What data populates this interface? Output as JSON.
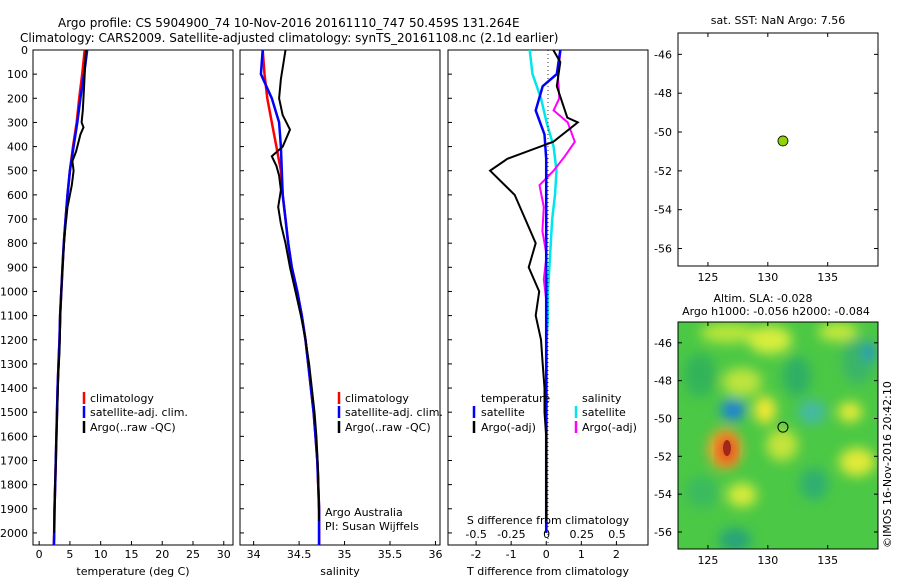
{
  "title": {
    "line1": "Argo profile: CS 5904900_74 10-Nov-2016 20161110_747 50.459S 131.264E",
    "line2": "Climatology: CARS2009. Satellite-adjusted climatology: synTS_20161108.nc (2.1d earlier)"
  },
  "depth_ticks": [
    "0",
    "100",
    "200",
    "300",
    "400",
    "500",
    "600",
    "700",
    "800",
    "900",
    "1000",
    "1100",
    "1200",
    "1300",
    "1400",
    "1500",
    "1600",
    "1700",
    "1800",
    "1900",
    "2000"
  ],
  "panel_temperature": {
    "xlabel": "temperature (deg C)",
    "xticks": [
      "0",
      "5",
      "10",
      "15",
      "20",
      "25",
      "30"
    ],
    "legend": [
      "climatology",
      "satellite-adj. clim.",
      "Argo(..raw -QC)"
    ]
  },
  "panel_salinity": {
    "xlabel": "salinity",
    "xticks": [
      "34",
      "34.5",
      "35",
      "35.5",
      "36"
    ],
    "legend": [
      "climatology",
      "satellite-adj. clim.",
      "Argo(..raw -QC)"
    ],
    "note1": "Argo Australia",
    "note2": "PI: Susan Wijffels"
  },
  "panel_diff": {
    "xlabel": "T difference from climatology",
    "top_label": "S difference from climatology",
    "xticks_t": [
      "-2",
      "-1",
      "0",
      "1",
      "2"
    ],
    "xticks_s": [
      "-0.5",
      "-0.25",
      "0",
      "0.25",
      "0.5"
    ],
    "legend_t_title": "temperature",
    "legend_s_title": "salinity",
    "legend_t": [
      "satellite",
      "Argo(-adj)"
    ],
    "legend_s": [
      "satellite",
      "Argo(-adj)"
    ]
  },
  "map_sst": {
    "title": "sat. SST: NaN Argo: 7.56",
    "yticks": [
      "-46",
      "-48",
      "-50",
      "-52",
      "-54",
      "-56"
    ],
    "xticks": [
      "125",
      "130",
      "135"
    ]
  },
  "map_sla": {
    "title1": "Altim. SLA: -0.028",
    "title2": "Argo h1000: -0.056 h2000: -0.084",
    "yticks": [
      "-46",
      "-48",
      "-50",
      "-52",
      "-54",
      "-56"
    ],
    "xticks": [
      "125",
      "130",
      "135"
    ]
  },
  "watermark": "©IMOS 16-Nov-2016 20:42:10",
  "colors": {
    "climatology": "#ff0000",
    "satellite": "#0000ff",
    "argo": "#000000",
    "sat_s": "#00e5ee",
    "argo_s": "#ff00ff",
    "float_marker": "#8fd400"
  },
  "chart_data": [
    {
      "type": "line",
      "xlabel": "temperature (deg C)",
      "ylabel": "",
      "xlim": [
        -1,
        31.5
      ],
      "ylim": [
        2050,
        0
      ],
      "series": [
        {
          "name": "climatology",
          "x": [
            7.4,
            7.0,
            6.5,
            6.1,
            5.5,
            5.0,
            4.6,
            4.3,
            4.0,
            3.8,
            3.6,
            3.4,
            3.3,
            3.15,
            3.0,
            2.9,
            2.8,
            2.7,
            2.6,
            2.5,
            2.45,
            2.4
          ],
          "y": [
            0,
            100,
            200,
            300,
            400,
            500,
            600,
            700,
            800,
            900,
            1000,
            1100,
            1200,
            1300,
            1400,
            1500,
            1600,
            1700,
            1800,
            1900,
            2000,
            2050
          ]
        },
        {
          "name": "satellite-adj. clim.",
          "x": [
            7.8,
            7.3,
            6.7,
            6.2,
            5.6,
            5.0,
            4.6,
            4.3,
            4.0,
            3.8,
            3.6,
            3.4,
            3.3,
            3.15,
            3.0,
            2.9,
            2.8,
            2.7,
            2.6,
            2.5,
            2.45,
            2.4
          ],
          "y": [
            0,
            100,
            200,
            300,
            400,
            500,
            600,
            700,
            800,
            900,
            1000,
            1100,
            1200,
            1300,
            1400,
            1500,
            1600,
            1700,
            1800,
            1900,
            2000,
            2050
          ]
        },
        {
          "name": "Argo(..raw -QC)",
          "x": [
            7.6,
            7.5,
            7.3,
            7.1,
            6.9,
            7.2,
            6.7,
            6.0,
            5.4,
            5.6,
            5.3,
            4.6,
            4.2,
            3.9,
            3.7,
            3.5,
            3.4,
            3.3,
            3.1,
            3.0,
            2.85,
            2.75,
            2.65,
            2.55,
            2.45
          ],
          "y": [
            0,
            50,
            150,
            250,
            300,
            320,
            350,
            420,
            460,
            500,
            560,
            650,
            750,
            850,
            950,
            1050,
            1150,
            1250,
            1350,
            1450,
            1550,
            1650,
            1750,
            1850,
            2000
          ]
        }
      ]
    },
    {
      "type": "line",
      "xlabel": "salinity",
      "ylabel": "",
      "xlim": [
        33.85,
        36.05
      ],
      "ylim": [
        2050,
        0
      ],
      "series": [
        {
          "name": "climatology",
          "x": [
            34.1,
            34.12,
            34.15,
            34.2,
            34.25,
            34.3,
            34.32,
            34.35,
            34.38,
            34.42,
            34.48,
            34.53,
            34.57,
            34.6,
            34.63,
            34.66,
            34.68,
            34.7,
            34.71,
            34.72,
            34.72,
            34.72
          ],
          "y": [
            0,
            100,
            200,
            300,
            400,
            500,
            600,
            700,
            800,
            900,
            1000,
            1100,
            1200,
            1300,
            1400,
            1500,
            1600,
            1700,
            1800,
            1900,
            2000,
            2050
          ]
        },
        {
          "name": "satellite-adj. clim.",
          "x": [
            34.1,
            34.08,
            34.2,
            34.28,
            34.3,
            34.31,
            34.32,
            34.35,
            34.38,
            34.42,
            34.48,
            34.53,
            34.57,
            34.6,
            34.63,
            34.66,
            34.68,
            34.7,
            34.71,
            34.72,
            34.72,
            34.72
          ],
          "y": [
            0,
            100,
            200,
            300,
            400,
            500,
            600,
            700,
            800,
            900,
            1000,
            1100,
            1200,
            1300,
            1400,
            1500,
            1600,
            1700,
            1800,
            1900,
            2000,
            2050
          ]
        },
        {
          "name": "Argo(..raw -QC)",
          "x": [
            34.35,
            34.33,
            34.3,
            34.28,
            34.32,
            34.36,
            34.4,
            34.32,
            34.2,
            34.25,
            34.28,
            34.3,
            34.27,
            34.3,
            34.35,
            34.4,
            34.46,
            34.52,
            34.57,
            34.61,
            34.64,
            34.67,
            34.69,
            34.71,
            34.72
          ],
          "y": [
            0,
            50,
            120,
            200,
            270,
            300,
            330,
            400,
            440,
            480,
            520,
            580,
            650,
            720,
            800,
            900,
            1000,
            1100,
            1200,
            1300,
            1400,
            1500,
            1600,
            1750,
            1950
          ]
        }
      ]
    },
    {
      "type": "line",
      "xlabel": "T difference from climatology",
      "ylabel": "",
      "xlim": [
        -2.8,
        2.9
      ],
      "ylim": [
        2050,
        0
      ],
      "series": [
        {
          "name": "satellite",
          "x": [
            0.4,
            0.3,
            -0.1,
            -0.3,
            -0.05,
            0,
            0,
            0,
            0,
            0,
            0,
            0,
            0,
            0,
            0,
            0,
            0,
            0,
            0,
            0,
            0
          ],
          "y": [
            0,
            100,
            150,
            250,
            350,
            450,
            550,
            650,
            750,
            850,
            950,
            1050,
            1150,
            1250,
            1350,
            1450,
            1550,
            1650,
            1750,
            1850,
            2000
          ]
        },
        {
          "name": "Argo(-adj)",
          "x": [
            0.2,
            0.4,
            0.3,
            0.6,
            0.9,
            0.2,
            -1.1,
            -1.6,
            -0.9,
            -0.6,
            -0.3,
            -0.5,
            -0.2,
            -0.3,
            -0.15,
            -0.1,
            -0.05,
            -0.05,
            0,
            0,
            0
          ],
          "y": [
            0,
            50,
            150,
            280,
            300,
            380,
            450,
            500,
            600,
            700,
            800,
            900,
            1000,
            1100,
            1200,
            1300,
            1400,
            1500,
            1600,
            1700,
            1950
          ]
        }
      ]
    },
    {
      "type": "line",
      "xlabel": "S difference from climatology",
      "ylabel": "",
      "xlim": [
        -0.7,
        0.72
      ],
      "ylim": [
        2050,
        0
      ],
      "series": [
        {
          "name": "satellite",
          "x": [
            -0.12,
            -0.1,
            -0.04,
            0,
            0.05,
            0.07,
            0.06,
            0.04,
            0.03,
            0.02,
            0.01,
            0.01,
            0,
            0,
            0,
            0,
            0,
            0
          ],
          "y": [
            0,
            100,
            200,
            300,
            400,
            500,
            600,
            700,
            800,
            900,
            1000,
            1100,
            1200,
            1300,
            1400,
            1500,
            1700,
            2000
          ]
        },
        {
          "name": "Argo(-adj)",
          "x": [
            0.1,
            0.08,
            0.09,
            0.05,
            0.15,
            0.2,
            0.13,
            0.05,
            -0.05,
            -0.02,
            -0.03,
            0,
            -0.02,
            0,
            0,
            0,
            0
          ],
          "y": [
            0,
            100,
            200,
            250,
            300,
            380,
            440,
            500,
            560,
            650,
            750,
            850,
            950,
            1050,
            1150,
            1300,
            1600
          ]
        }
      ]
    },
    {
      "type": "scatter",
      "title": "sat. SST: NaN Argo: 7.56",
      "xlim": [
        122.5,
        139.2
      ],
      "ylim": [
        -56.9,
        -44.9
      ],
      "series": [
        {
          "x": [
            131.264
          ],
          "y": [
            -50.459
          ]
        }
      ]
    },
    {
      "type": "heatmap",
      "title": "Altim. SLA: -0.028",
      "xlim": [
        122.5,
        139.2
      ],
      "ylim": [
        -56.9,
        -44.9
      ],
      "marker": {
        "x": 131.264,
        "y": -50.459
      }
    }
  ]
}
